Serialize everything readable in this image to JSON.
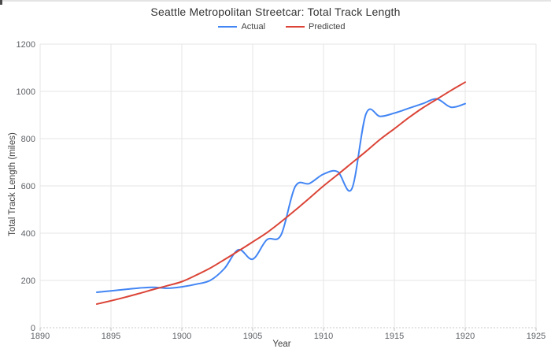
{
  "chart_data": {
    "type": "line",
    "title": "Seattle Metropolitan Streetcar: Total Track Length",
    "xlabel": "Year",
    "ylabel": "Total Track Length (miles)",
    "xlim": [
      1890,
      1925
    ],
    "ylim": [
      0,
      1200
    ],
    "x_ticks": [
      1890,
      1895,
      1900,
      1905,
      1910,
      1915,
      1920,
      1925
    ],
    "y_ticks": [
      0,
      200,
      400,
      600,
      800,
      1000,
      1200
    ],
    "grid": true,
    "legend_position": "top-center",
    "line_smoothing": true,
    "x": [
      1894,
      1895,
      1896,
      1897,
      1898,
      1899,
      1900,
      1901,
      1902,
      1903,
      1904,
      1905,
      1906,
      1907,
      1908,
      1909,
      1910,
      1911,
      1912,
      1913,
      1914,
      1915,
      1916,
      1917,
      1918,
      1919,
      1920
    ],
    "series": [
      {
        "name": "Actual",
        "color": "#4285f4",
        "values": [
          150,
          156,
          162,
          168,
          171,
          167,
          173,
          184,
          200,
          250,
          330,
          290,
          372,
          392,
          597,
          610,
          650,
          660,
          588,
          905,
          894,
          908,
          928,
          948,
          968,
          933,
          948
        ]
      },
      {
        "name": "Predicted",
        "color": "#db4437",
        "values": [
          100,
          114,
          129,
          145,
          162,
          178,
          195,
          222,
          252,
          288,
          325,
          363,
          402,
          448,
          497,
          548,
          600,
          648,
          697,
          746,
          797,
          842,
          888,
          930,
          967,
          1004,
          1039
        ]
      }
    ],
    "style": {
      "gridline_color": "#e6e6e6",
      "baseline_color": "#c9c9c9",
      "tick_color": "#bdbdbd",
      "tick_label_color": "#5f6368",
      "title_color": "#333333"
    }
  }
}
